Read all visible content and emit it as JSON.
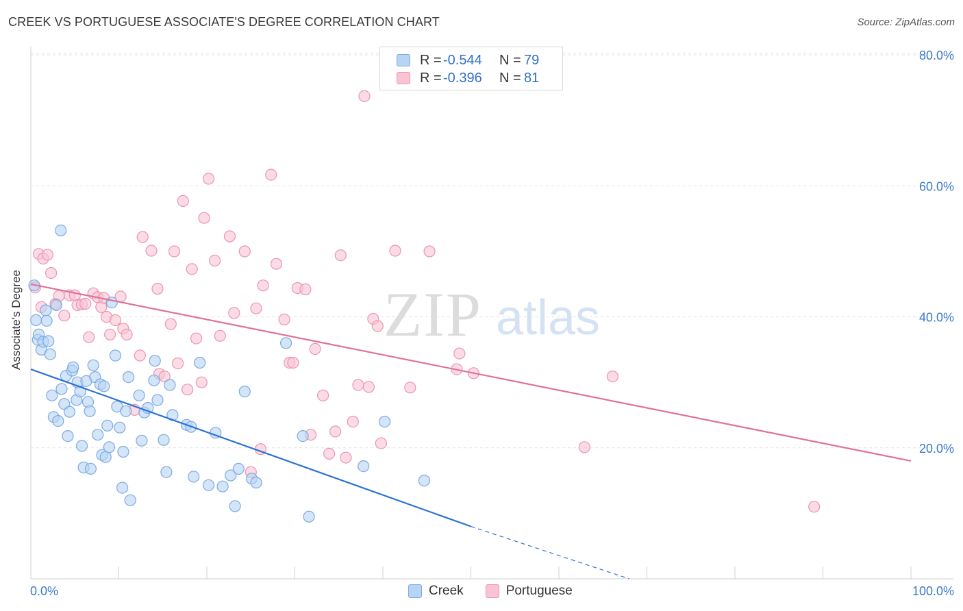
{
  "header": {
    "title": "CREEK VS PORTUGUESE ASSOCIATE'S DEGREE CORRELATION CHART",
    "source": "Source: ZipAtlas.com"
  },
  "legend": {
    "creek": {
      "r_label": "R =",
      "r_value": "-0.544",
      "n_label": "N =",
      "n_value": "79"
    },
    "portuguese": {
      "r_label": "R =",
      "r_value": "-0.396",
      "n_label": "N =",
      "n_value": "81"
    }
  },
  "bottom_legend": {
    "creek": "Creek",
    "portuguese": "Portuguese"
  },
  "watermark": {
    "zip": "ZIP",
    "atlas": "atlas"
  },
  "colors": {
    "creek_fill": "#b8d4f4",
    "creek_stroke": "#7aaae4",
    "creek_line": "#2a72d6",
    "portuguese_fill": "#f8c4d4",
    "portuguese_stroke": "#ec94b0",
    "portuguese_line": "#e0709a",
    "axis_text": "#3a78c8",
    "grid": "#e2e2e2"
  },
  "chart_data": {
    "type": "scatter",
    "title": "CREEK VS PORTUGUESE ASSOCIATE'S DEGREE CORRELATION CHART",
    "xlabel": "",
    "ylabel": "Associate's Degree",
    "xlim": [
      0,
      100
    ],
    "ylim": [
      0,
      83
    ],
    "x_tick_labels": [
      "0.0%",
      "100.0%"
    ],
    "y_ticks": [
      20,
      40,
      60,
      80
    ],
    "y_tick_labels": [
      "20.0%",
      "40.0%",
      "60.0%",
      "80.0%"
    ],
    "grid": true,
    "series": [
      {
        "name": "Creek",
        "trend": {
          "x1": 0,
          "y1": 32.0,
          "x2": 50,
          "y2": 8.0,
          "dashed_to_x": 68,
          "dashed_to_y": 0
        },
        "points": [
          [
            0.4,
            44.8
          ],
          [
            0.6,
            39.5
          ],
          [
            0.8,
            36.5
          ],
          [
            0.9,
            37.3
          ],
          [
            1.2,
            35.0
          ],
          [
            1.4,
            36.2
          ],
          [
            1.7,
            41.0
          ],
          [
            1.8,
            39.4
          ],
          [
            2.0,
            36.3
          ],
          [
            2.2,
            34.3
          ],
          [
            2.4,
            28.0
          ],
          [
            2.6,
            24.7
          ],
          [
            2.9,
            41.8
          ],
          [
            3.1,
            24.1
          ],
          [
            3.4,
            53.2
          ],
          [
            3.5,
            29.0
          ],
          [
            3.8,
            26.7
          ],
          [
            4.0,
            31.0
          ],
          [
            4.2,
            21.8
          ],
          [
            4.4,
            25.5
          ],
          [
            4.7,
            31.8
          ],
          [
            4.8,
            32.3
          ],
          [
            5.2,
            27.3
          ],
          [
            5.3,
            30.0
          ],
          [
            5.6,
            28.6
          ],
          [
            5.8,
            20.3
          ],
          [
            6.0,
            17.0
          ],
          [
            6.3,
            30.2
          ],
          [
            6.5,
            27.0
          ],
          [
            6.7,
            25.6
          ],
          [
            6.8,
            16.8
          ],
          [
            7.1,
            32.6
          ],
          [
            7.3,
            30.8
          ],
          [
            7.6,
            22.0
          ],
          [
            7.9,
            29.7
          ],
          [
            8.1,
            18.9
          ],
          [
            8.3,
            29.4
          ],
          [
            8.5,
            18.6
          ],
          [
            8.7,
            23.4
          ],
          [
            8.9,
            20.1
          ],
          [
            9.2,
            42.2
          ],
          [
            9.6,
            34.1
          ],
          [
            9.8,
            26.3
          ],
          [
            10.1,
            23.1
          ],
          [
            10.4,
            13.9
          ],
          [
            10.5,
            19.4
          ],
          [
            10.8,
            25.6
          ],
          [
            11.1,
            30.8
          ],
          [
            11.3,
            12.0
          ],
          [
            12.3,
            28.0
          ],
          [
            12.6,
            21.1
          ],
          [
            12.9,
            25.4
          ],
          [
            13.3,
            26.1
          ],
          [
            14.0,
            30.3
          ],
          [
            14.1,
            33.3
          ],
          [
            14.4,
            27.3
          ],
          [
            15.1,
            21.2
          ],
          [
            15.4,
            16.3
          ],
          [
            15.8,
            29.6
          ],
          [
            16.1,
            25.0
          ],
          [
            17.7,
            23.5
          ],
          [
            18.2,
            23.2
          ],
          [
            18.5,
            15.6
          ],
          [
            19.2,
            33.0
          ],
          [
            20.2,
            14.3
          ],
          [
            21.0,
            22.3
          ],
          [
            21.8,
            14.1
          ],
          [
            22.7,
            15.8
          ],
          [
            23.2,
            11.1
          ],
          [
            23.6,
            16.8
          ],
          [
            24.3,
            28.6
          ],
          [
            25.1,
            15.3
          ],
          [
            25.6,
            14.7
          ],
          [
            29.0,
            36.0
          ],
          [
            30.9,
            21.8
          ],
          [
            31.6,
            9.5
          ],
          [
            37.8,
            17.2
          ],
          [
            40.2,
            24.0
          ],
          [
            44.7,
            15.0
          ]
        ]
      },
      {
        "name": "Portuguese",
        "trend": {
          "x1": 0,
          "y1": 45.0,
          "x2": 100,
          "y2": 18.0
        },
        "points": [
          [
            0.5,
            44.5
          ],
          [
            0.9,
            49.6
          ],
          [
            1.4,
            48.9
          ],
          [
            1.9,
            49.5
          ],
          [
            2.3,
            46.7
          ],
          [
            2.8,
            42.0
          ],
          [
            3.2,
            43.2
          ],
          [
            3.8,
            40.2
          ],
          [
            4.4,
            43.3
          ],
          [
            5.0,
            43.3
          ],
          [
            5.3,
            41.8
          ],
          [
            5.8,
            41.9
          ],
          [
            6.2,
            42.0
          ],
          [
            6.6,
            36.9
          ],
          [
            7.1,
            43.6
          ],
          [
            7.6,
            43.0
          ],
          [
            8.0,
            41.5
          ],
          [
            8.3,
            42.9
          ],
          [
            8.6,
            40.0
          ],
          [
            9.0,
            37.3
          ],
          [
            9.6,
            39.5
          ],
          [
            10.2,
            43.1
          ],
          [
            10.5,
            38.2
          ],
          [
            10.9,
            37.3
          ],
          [
            11.8,
            25.8
          ],
          [
            12.4,
            34.1
          ],
          [
            12.7,
            52.2
          ],
          [
            13.7,
            50.1
          ],
          [
            14.4,
            44.3
          ],
          [
            14.6,
            31.3
          ],
          [
            15.2,
            30.9
          ],
          [
            15.9,
            38.9
          ],
          [
            16.3,
            50.0
          ],
          [
            16.7,
            32.9
          ],
          [
            17.3,
            57.7
          ],
          [
            17.8,
            28.9
          ],
          [
            18.3,
            47.3
          ],
          [
            18.8,
            36.7
          ],
          [
            19.4,
            30.0
          ],
          [
            19.7,
            55.1
          ],
          [
            20.2,
            61.1
          ],
          [
            20.9,
            48.6
          ],
          [
            21.5,
            37.1
          ],
          [
            22.6,
            52.3
          ],
          [
            23.1,
            40.6
          ],
          [
            24.3,
            50.0
          ],
          [
            25.0,
            16.3
          ],
          [
            25.6,
            41.3
          ],
          [
            26.1,
            19.8
          ],
          [
            26.4,
            44.8
          ],
          [
            27.3,
            61.7
          ],
          [
            27.9,
            48.1
          ],
          [
            28.8,
            39.6
          ],
          [
            29.4,
            33.0
          ],
          [
            29.8,
            33.0
          ],
          [
            30.3,
            44.4
          ],
          [
            31.2,
            44.2
          ],
          [
            31.8,
            22.0
          ],
          [
            32.3,
            35.1
          ],
          [
            33.2,
            28.0
          ],
          [
            33.9,
            19.1
          ],
          [
            34.6,
            22.5
          ],
          [
            35.2,
            49.4
          ],
          [
            35.8,
            18.5
          ],
          [
            36.6,
            24.0
          ],
          [
            37.2,
            29.6
          ],
          [
            37.9,
            73.7
          ],
          [
            38.4,
            29.3
          ],
          [
            38.9,
            39.7
          ],
          [
            39.4,
            38.6
          ],
          [
            39.8,
            20.7
          ],
          [
            41.4,
            50.1
          ],
          [
            43.1,
            29.2
          ],
          [
            45.3,
            50.0
          ],
          [
            48.4,
            32.0
          ],
          [
            48.7,
            34.4
          ],
          [
            50.3,
            31.4
          ],
          [
            62.9,
            20.1
          ],
          [
            66.1,
            30.9
          ],
          [
            89.0,
            11.0
          ],
          [
            1.2,
            41.5
          ]
        ]
      }
    ]
  }
}
